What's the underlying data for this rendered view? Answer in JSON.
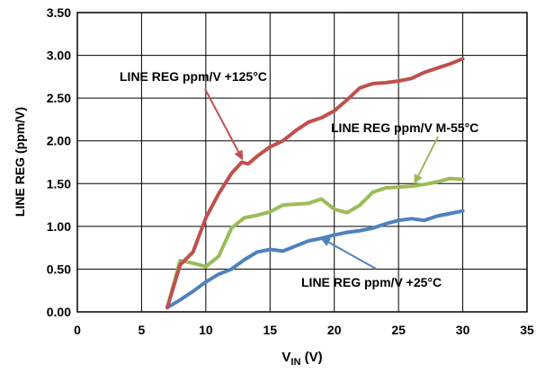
{
  "chart_data": {
    "type": "line",
    "xlabel": "V",
    "xlabel_sub": "IN",
    "xlabel_unit": " (V)",
    "ylabel": "LINE REG (ppm/V)",
    "xlim": [
      0,
      35
    ],
    "ylim": [
      0,
      3.5
    ],
    "xticks": [
      0,
      5,
      10,
      15,
      20,
      25,
      30,
      35
    ],
    "yticks": [
      0,
      0.5,
      1.0,
      1.5,
      2.0,
      2.5,
      3.0,
      3.5
    ],
    "xtick_labels": [
      "0",
      "5",
      "10",
      "15",
      "20",
      "25",
      "30",
      "35"
    ],
    "ytick_labels": [
      "0.00",
      "0.50",
      "1.00",
      "1.50",
      "2.00",
      "2.50",
      "3.00",
      "3.50"
    ],
    "grid": true,
    "series": [
      {
        "name": "LINE REG ppm/V +125°C",
        "color": "#c0504d",
        "x": [
          7,
          8,
          9,
          10,
          11,
          12,
          12.8,
          13.3,
          14,
          15,
          16,
          17,
          18,
          19,
          20,
          21,
          22,
          23,
          24,
          25,
          26,
          27,
          28,
          29,
          30
        ],
        "y": [
          0.05,
          0.55,
          0.7,
          1.1,
          1.38,
          1.62,
          1.75,
          1.73,
          1.82,
          1.93,
          2.0,
          2.12,
          2.22,
          2.27,
          2.35,
          2.48,
          2.62,
          2.67,
          2.68,
          2.7,
          2.73,
          2.8,
          2.85,
          2.9,
          2.96
        ]
      },
      {
        "name": "LINE REG ppm/V M-55°C",
        "color": "#9bbb59",
        "x": [
          7,
          8,
          9,
          10,
          11,
          12,
          13,
          14,
          15,
          16,
          17,
          18,
          19,
          20,
          21,
          22,
          23,
          24,
          25,
          26,
          27,
          28,
          29,
          30
        ],
        "y": [
          0.05,
          0.6,
          0.57,
          0.53,
          0.65,
          0.98,
          1.1,
          1.13,
          1.17,
          1.25,
          1.26,
          1.27,
          1.32,
          1.2,
          1.16,
          1.25,
          1.4,
          1.45,
          1.46,
          1.47,
          1.49,
          1.52,
          1.56,
          1.55
        ]
      },
      {
        "name": "LINE REG ppm/V +25°C",
        "color": "#4f81bd",
        "x": [
          7,
          8,
          9,
          10,
          11,
          12,
          13,
          14,
          15,
          16,
          17,
          18,
          19,
          20,
          21,
          22,
          23,
          24,
          25,
          26,
          27,
          28,
          29,
          30
        ],
        "y": [
          0.05,
          0.14,
          0.24,
          0.35,
          0.44,
          0.5,
          0.61,
          0.7,
          0.73,
          0.71,
          0.77,
          0.83,
          0.86,
          0.9,
          0.93,
          0.95,
          0.98,
          1.03,
          1.07,
          1.09,
          1.07,
          1.12,
          1.15,
          1.18
        ]
      }
    ],
    "annotations": [
      {
        "text": "LINE REG ppm/V +125°C",
        "series": 0
      },
      {
        "text": "LINE REG ppm/V M-55°C",
        "series": 1
      },
      {
        "text": "LINE REG ppm/V +25°C",
        "series": 2
      }
    ]
  }
}
